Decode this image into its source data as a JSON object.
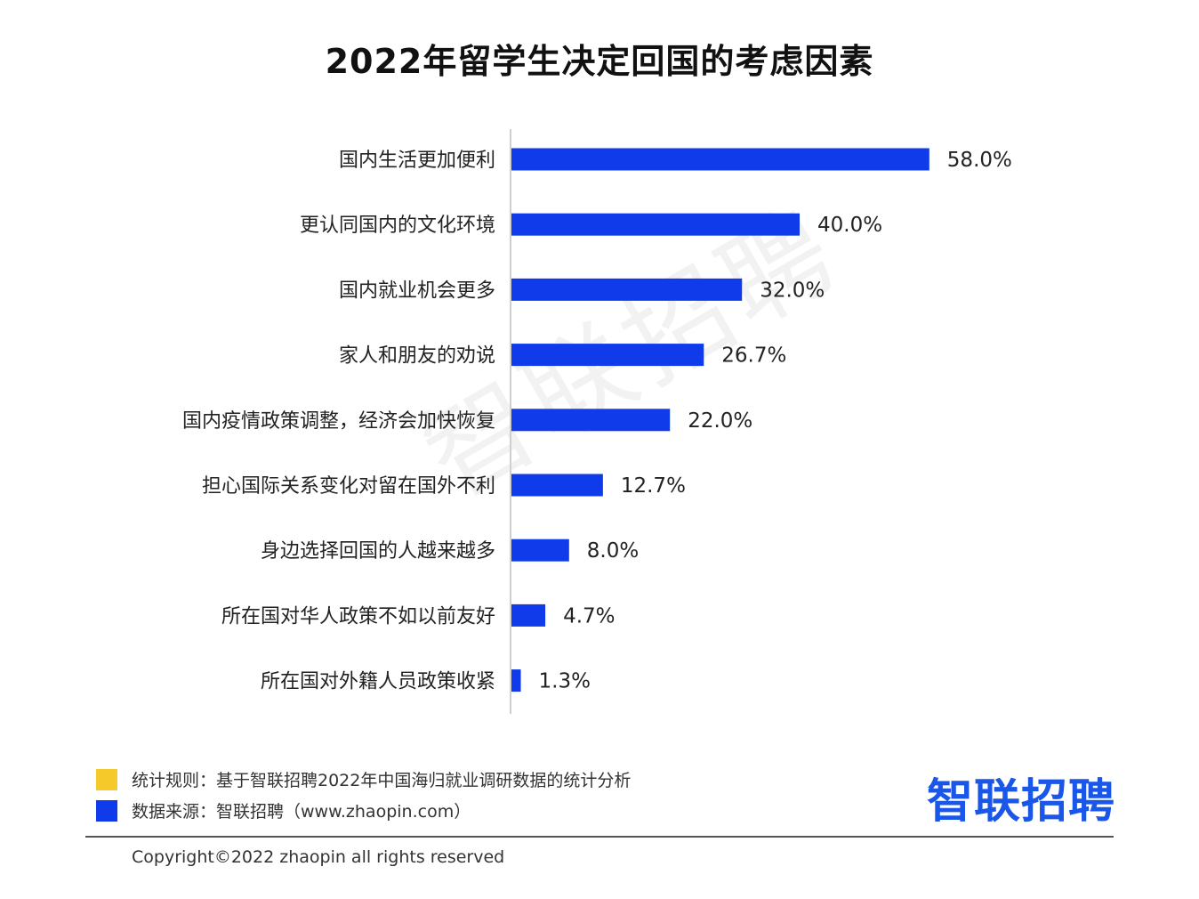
{
  "chart_data": {
    "type": "bar",
    "orientation": "horizontal",
    "title": "2022年留学生决定回国的考虑因素",
    "categories": [
      "国内生活更加便利",
      "更认同国内的文化环境",
      "国内就业机会更多",
      "家人和朋友的劝说",
      "国内疫情政策调整，经济会加快恢复",
      "担心国际关系变化对留在国外不利",
      "身边选择回国的人越来越多",
      "所在国对华人政策不如以前友好",
      "所在国对外籍人员政策收紧"
    ],
    "values": [
      58.0,
      40.0,
      32.0,
      26.7,
      22.0,
      12.7,
      8.0,
      4.7,
      1.3
    ],
    "value_labels": [
      "58.0%",
      "40.0%",
      "32.0%",
      "26.7%",
      "22.0%",
      "12.7%",
      "8.0%",
      "4.7%",
      "1.3%"
    ],
    "xlim": [
      0,
      100
    ],
    "grid": false,
    "bar_color": "#0f3bea"
  },
  "watermark": "智联招聘",
  "legend": {
    "rule_label": "统计规则：基于智联招聘2022年中国海归就业调研数据的统计分析",
    "rule_color": "#f5c92a",
    "source_label": "数据来源：智联招聘（www.zhaopin.com）",
    "source_color": "#0f3bea"
  },
  "logo_text": "智联招聘",
  "copyright": "Copyright©2022 zhaopin all rights reserved"
}
